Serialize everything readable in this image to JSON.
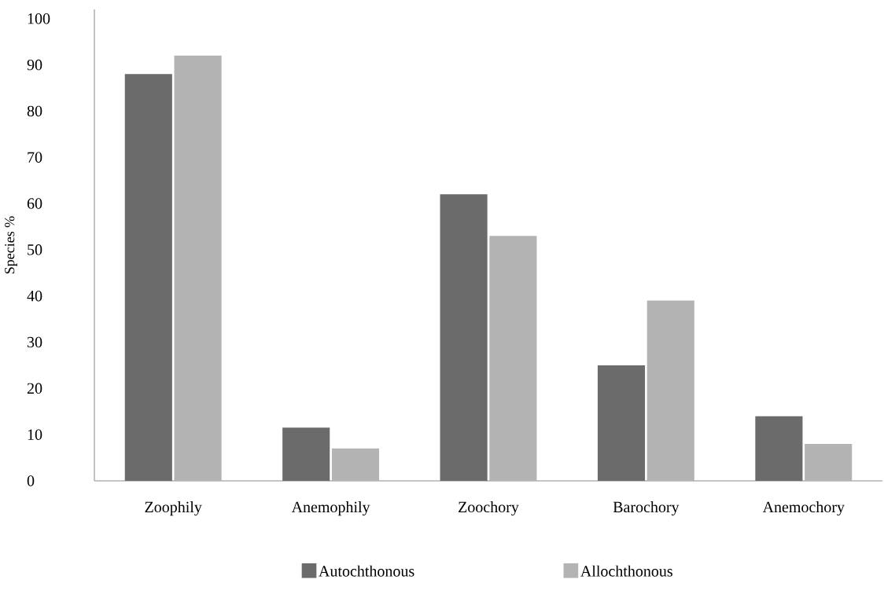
{
  "chart_data": {
    "type": "bar",
    "ylabel": "Species %",
    "categories": [
      "Zoophily",
      "Anemophily",
      "Zoochory",
      "Barochory",
      "Anemochory"
    ],
    "series": [
      {
        "name": "Autochthonous",
        "color": "#6b6b6b",
        "values": [
          88,
          11.5,
          62,
          25,
          14
        ]
      },
      {
        "name": "Allochthonous",
        "color": "#b3b3b3",
        "values": [
          92,
          7,
          53,
          39,
          8
        ]
      }
    ],
    "ylim": [
      0,
      102
    ],
    "yticks": [
      0,
      10,
      20,
      30,
      40,
      50,
      60,
      70,
      80,
      90,
      100
    ],
    "grid": false,
    "legend": "bottom"
  }
}
